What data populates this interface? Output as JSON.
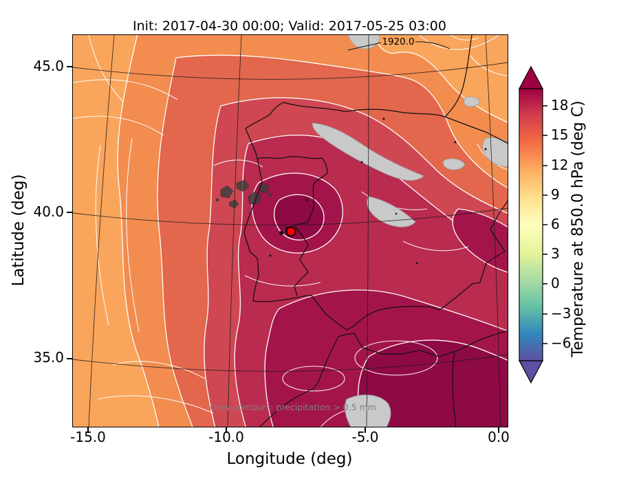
{
  "title": "Init: 2017-04-30 00:00; Valid: 2017-05-25 03:00",
  "axes": {
    "xlabel": "Longitude (deg)",
    "ylabel": "Latitude (deg)",
    "xticks": [
      "-15.0",
      "-10.0",
      "-5.0",
      "0.0"
    ],
    "yticks": [
      "45.0",
      "40.0",
      "35.0"
    ]
  },
  "colorbar": {
    "label": "Temperature at 850.0 hPa (deg C)",
    "ticks": [
      "18",
      "15",
      "12",
      "9",
      "6",
      "3",
      "0",
      "−3",
      "−6"
    ],
    "colors": [
      "#9e0142",
      "#d53e4f",
      "#f46d43",
      "#fdae61",
      "#fee08b",
      "#ffffbf",
      "#e6f598",
      "#abdda4",
      "#66c2a5",
      "#3288bd",
      "#5e4fa2"
    ]
  },
  "annotations": {
    "contour_label": "1920.0",
    "precip_note": "Grey contours: precipitation > 0.5 mm"
  },
  "marker": {
    "lon": -7.7,
    "lat": 39.4,
    "color": "#ff0000"
  },
  "chart_data": {
    "type": "heatmap",
    "title": "Init: 2017-04-30 00:00; Valid: 2017-05-25 03:00",
    "xlabel": "Longitude (deg)",
    "ylabel": "Latitude (deg)",
    "xlim": [
      -15.6,
      0.3
    ],
    "ylim": [
      32.6,
      46.2
    ],
    "colorbar_label": "Temperature at 850.0 hPa (deg C)",
    "colorbar_ticks": [
      18,
      15,
      12,
      9,
      6,
      3,
      0,
      -3,
      -6
    ],
    "colormap": "Spectral reversed (warm=dark red, cold=purple)",
    "field": "temperature at 850.0 hPa (deg C), filled contours over Iberian Peninsula",
    "sample_grid": {
      "lons": [
        -15,
        -10,
        -5,
        0
      ],
      "lats": [
        45,
        40,
        35
      ],
      "values_degC": [
        [
          13,
          14,
          15,
          14
        ],
        [
          14,
          17,
          19,
          18
        ],
        [
          15,
          17,
          19,
          19
        ]
      ]
    },
    "overlays": [
      "white contour lines of temperature",
      "grey contours / shaded patches: precipitation > 0.5 mm",
      "black coastlines and country borders (Spain, Portugal, France, Morocco)",
      "black contour labelled 1920.0 near top edge",
      "red circular marker at approx lon -7.7, lat 39.4"
    ],
    "grid": true,
    "legend_position": "right colorbar with extend arrows both ends"
  }
}
